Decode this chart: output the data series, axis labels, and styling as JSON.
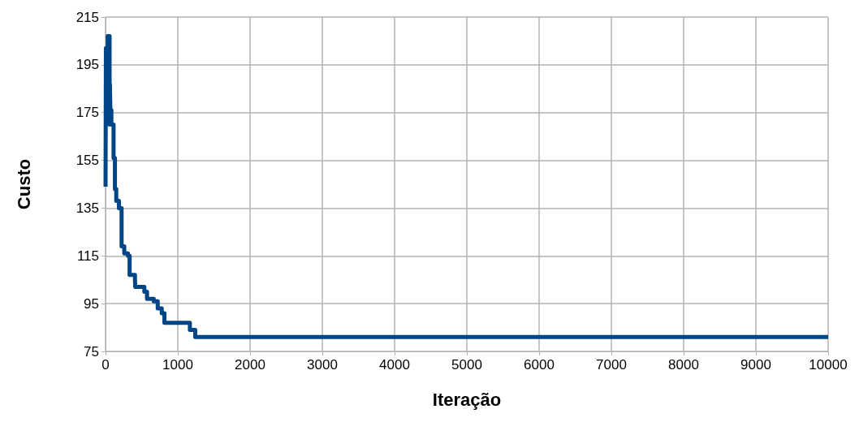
{
  "chart_data": {
    "type": "step",
    "xlabel": "Iteração",
    "ylabel": "Custo",
    "x": [
      0,
      5,
      30,
      56,
      60,
      67,
      81,
      111,
      130,
      148,
      185,
      222,
      259,
      311,
      333,
      407,
      411,
      537,
      574,
      667,
      722,
      778,
      815,
      1167,
      1241,
      10000
    ],
    "series": [
      {
        "color": "#004586",
        "values": [
          144,
          202,
          207,
          170,
          187,
          176,
          170,
          156,
          143,
          138,
          135,
          119,
          116,
          115,
          107,
          105,
          102,
          100,
          97,
          96,
          93,
          91,
          87,
          84,
          81,
          81
        ]
      }
    ],
    "xlim": [
      0,
      10000
    ],
    "xticks": [
      0,
      1000,
      2000,
      3000,
      4000,
      5000,
      6000,
      7000,
      8000,
      9000,
      10000
    ],
    "ylim": [
      75,
      215
    ],
    "yticks": [
      75,
      95,
      115,
      135,
      155,
      175,
      195,
      215
    ],
    "grid": true,
    "marker": "none",
    "line_style": "solid"
  }
}
